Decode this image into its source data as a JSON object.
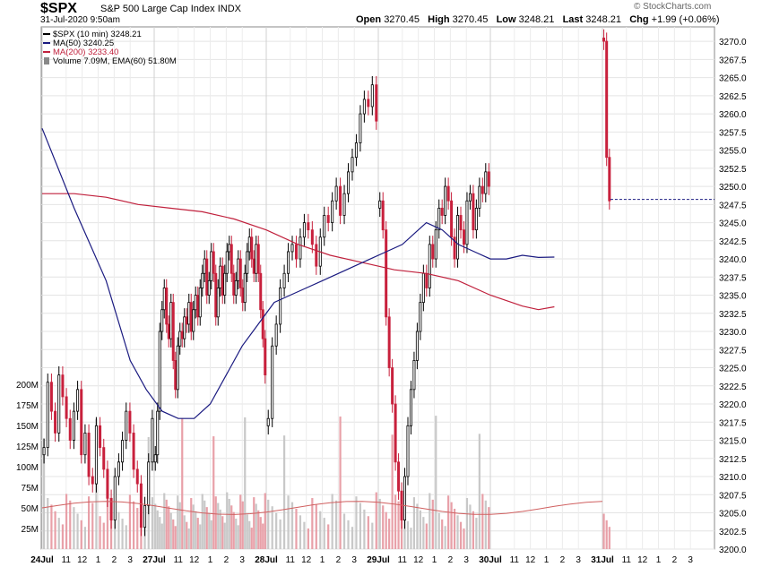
{
  "header": {
    "symbol": "$SPX",
    "name": "S&P 500 Large Cap Index",
    "exchange": "INDX",
    "datetime": "31-Jul-2020 9:50am",
    "open_label": "Open",
    "open": "3270.45",
    "high_label": "High",
    "high": "3270.45",
    "low_label": "Low",
    "low": "3248.21",
    "last_label": "Last",
    "last": "3248.21",
    "chg_label": "Chg",
    "chg": "+1.99 (+0.06%)",
    "brand": "© StockCharts.com"
  },
  "legend": [
    {
      "label": "$SPX (10 min) 3248.21",
      "color": "#000000",
      "kind": "line"
    },
    {
      "label": "MA(50) 3240.25",
      "color": "#1a1a80",
      "kind": "line"
    },
    {
      "label": "MA(200) 3233.40",
      "color": "#c0203c",
      "kind": "line"
    },
    {
      "label": "Volume 7.09M, EMA(60) 51.80M",
      "color": "#888888",
      "kind": "bar"
    }
  ],
  "colors": {
    "up": "#000000",
    "down": "#c8203c",
    "ma50": "#1a1a80",
    "ma200": "#c0203c",
    "vol_bar": "#c8c8c8",
    "vol_bar_down": "#e8a0a8",
    "vol_ema": "#d06060",
    "last_marker": "#e06000"
  },
  "chart_data": {
    "type": "candlestick",
    "interval": "10 min",
    "price_axis": {
      "side": "right",
      "ylim": [
        3200,
        3271
      ],
      "ticks": [
        3200,
        3202.5,
        3205,
        3207.5,
        3210,
        3212.5,
        3215,
        3217.5,
        3220,
        3222.5,
        3225,
        3227.5,
        3230,
        3232.5,
        3235,
        3237.5,
        3240,
        3242.5,
        3245,
        3247.5,
        3250,
        3252.5,
        3255,
        3257.5,
        3260,
        3262.5,
        3265,
        3267.5,
        3270
      ],
      "tick_labels": [
        "3200.0",
        "3202.5",
        "3205.0",
        "3207.5",
        "3210.0",
        "3212.5",
        "3215.0",
        "3217.5",
        "3220.0",
        "3222.5",
        "3225.0",
        "3227.5",
        "3230.0",
        "3232.5",
        "3235.0",
        "3237.5",
        "3240.0",
        "3242.5",
        "3245.0",
        "3247.5",
        "3250.0",
        "3252.5",
        "3255.0",
        "3257.5",
        "3260.0",
        "3262.5",
        "3265.0",
        "3267.5",
        "3270.0"
      ]
    },
    "volume_axis": {
      "side": "left",
      "ylim": [
        0,
        210
      ],
      "unit": "M",
      "ticks": [
        25,
        50,
        75,
        100,
        125,
        150,
        175,
        200
      ],
      "tick_labels": [
        "25M",
        "50M",
        "75M",
        "100M",
        "125M",
        "150M",
        "175M",
        "200M"
      ]
    },
    "x_labels": [
      {
        "label": "24Jul",
        "bold": true,
        "pos": 0
      },
      {
        "label": "11",
        "bold": false,
        "pos": 3
      },
      {
        "label": "12",
        "bold": false,
        "pos": 5
      },
      {
        "label": "1",
        "bold": false,
        "pos": 7
      },
      {
        "label": "2",
        "bold": false,
        "pos": 9
      },
      {
        "label": "3",
        "bold": false,
        "pos": 11
      },
      {
        "label": "27Jul",
        "bold": true,
        "pos": 14
      },
      {
        "label": "11",
        "bold": false,
        "pos": 17
      },
      {
        "label": "12",
        "bold": false,
        "pos": 19
      },
      {
        "label": "1",
        "bold": false,
        "pos": 21
      },
      {
        "label": "2",
        "bold": false,
        "pos": 23
      },
      {
        "label": "3",
        "bold": false,
        "pos": 25
      },
      {
        "label": "28Jul",
        "bold": true,
        "pos": 28
      },
      {
        "label": "11",
        "bold": false,
        "pos": 31
      },
      {
        "label": "12",
        "bold": false,
        "pos": 33
      },
      {
        "label": "1",
        "bold": false,
        "pos": 35
      },
      {
        "label": "2",
        "bold": false,
        "pos": 37
      },
      {
        "label": "3",
        "bold": false,
        "pos": 39
      },
      {
        "label": "29Jul",
        "bold": true,
        "pos": 42
      },
      {
        "label": "11",
        "bold": false,
        "pos": 45
      },
      {
        "label": "12",
        "bold": false,
        "pos": 47
      },
      {
        "label": "1",
        "bold": false,
        "pos": 49
      },
      {
        "label": "2",
        "bold": false,
        "pos": 51
      },
      {
        "label": "3",
        "bold": false,
        "pos": 53
      },
      {
        "label": "30Jul",
        "bold": true,
        "pos": 56
      },
      {
        "label": "11",
        "bold": false,
        "pos": 59
      },
      {
        "label": "12",
        "bold": false,
        "pos": 61
      },
      {
        "label": "1",
        "bold": false,
        "pos": 63
      },
      {
        "label": "2",
        "bold": false,
        "pos": 65
      },
      {
        "label": "3",
        "bold": false,
        "pos": 67
      },
      {
        "label": "31Jul",
        "bold": true,
        "pos": 70
      },
      {
        "label": "11",
        "bold": false,
        "pos": 73
      },
      {
        "label": "12",
        "bold": false,
        "pos": 75
      },
      {
        "label": "1",
        "bold": false,
        "pos": 77
      },
      {
        "label": "2",
        "bold": false,
        "pos": 79
      },
      {
        "label": "3",
        "bold": false,
        "pos": 81
      }
    ],
    "x_total": 84,
    "closes": [
      [
        3214,
        3223,
        3219,
        3216,
        3224,
        3221,
        3218,
        3215,
        3219,
        3222,
        3213,
        3216,
        3210,
        3209,
        3217,
        3214,
        3211,
        3207,
        3204,
        3210,
        3212,
        3215,
        3219,
        3216,
        3211,
        3209,
        3203,
        3206,
        3212,
        3218
      ],
      [
        3213,
        3219,
        3230,
        3233,
        3236,
        3231,
        3229,
        3234,
        3226,
        3222,
        3228,
        3230,
        3229,
        3232,
        3231,
        3234,
        3230,
        3233,
        3235,
        3232,
        3236,
        3238,
        3240,
        3235,
        3237,
        3241,
        3238,
        3232,
        3236,
        3239,
        3235,
        3238,
        3241,
        3242,
        3238,
        3235,
        3237,
        3240,
        3236,
        3234,
        3238,
        3241,
        3243,
        3240,
        3238,
        3242,
        3238,
        3233,
        3229,
        3224
      ],
      [
        3218,
        3228,
        3231,
        3236,
        3238,
        3241,
        3242,
        3240,
        3243,
        3245,
        3244,
        3242,
        3239,
        3243,
        3246,
        3245,
        3248,
        3250,
        3246,
        3249,
        3252,
        3254,
        3256,
        3260,
        3262,
        3261,
        3264,
        3259
      ],
      [
        3248,
        3244,
        3232,
        3225,
        3220,
        3212,
        3208,
        3204,
        3210,
        3217,
        3222,
        3226,
        3230,
        3234,
        3238,
        3236,
        3242,
        3240,
        3244,
        3247,
        3246,
        3250,
        3248,
        3243,
        3240,
        3246,
        3244,
        3242,
        3248,
        3249,
        3244,
        3247,
        3250,
        3249,
        3252,
        3250
      ],
      [
        3270,
        3254,
        3248
      ]
    ],
    "ma50": [
      [
        0,
        3258
      ],
      [
        4,
        3247
      ],
      [
        8,
        3237
      ],
      [
        11,
        3226
      ],
      [
        13,
        3222
      ],
      [
        15,
        3219
      ],
      [
        17,
        3218
      ],
      [
        19,
        3218
      ],
      [
        21,
        3220
      ],
      [
        23,
        3224
      ],
      [
        25,
        3228
      ],
      [
        27,
        3231
      ],
      [
        29,
        3234
      ],
      [
        31,
        3235
      ],
      [
        33,
        3236
      ],
      [
        35,
        3237
      ],
      [
        37,
        3238
      ],
      [
        39,
        3239
      ],
      [
        41,
        3240
      ],
      [
        43,
        3241
      ],
      [
        45,
        3242
      ],
      [
        47,
        3244
      ],
      [
        48,
        3245
      ],
      [
        50,
        3244
      ],
      [
        52,
        3242
      ],
      [
        54,
        3241
      ],
      [
        56,
        3240
      ],
      [
        58,
        3240
      ],
      [
        60,
        3240.5
      ],
      [
        62,
        3240.2
      ],
      [
        64,
        3240.25
      ]
    ],
    "ma200": [
      [
        0,
        3249
      ],
      [
        4,
        3249
      ],
      [
        8,
        3248.5
      ],
      [
        12,
        3247.5
      ],
      [
        16,
        3247
      ],
      [
        20,
        3246.5
      ],
      [
        24,
        3245.5
      ],
      [
        28,
        3244
      ],
      [
        32,
        3242
      ],
      [
        36,
        3240.5
      ],
      [
        40,
        3239.5
      ],
      [
        44,
        3238.5
      ],
      [
        48,
        3238
      ],
      [
        52,
        3237
      ],
      [
        56,
        3235
      ],
      [
        60,
        3233.5
      ],
      [
        62,
        3233
      ],
      [
        64,
        3233.4
      ]
    ],
    "last_price": 3248.21
  }
}
